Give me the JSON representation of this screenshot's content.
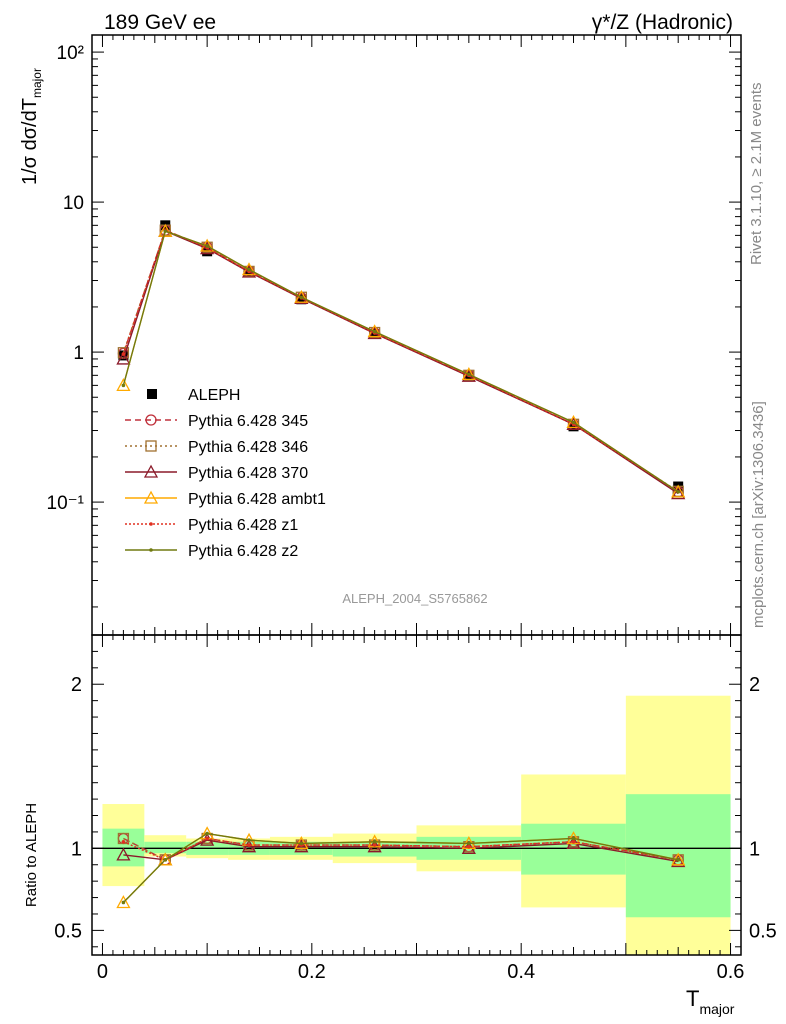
{
  "header": {
    "left_title": "189 GeV ee",
    "right_title": "γ*/Z (Hadronic)"
  },
  "side_labels": {
    "rivet": "Rivet 3.1.10, ≥ 2.1M events",
    "mcplots": "mcplots.cern.ch [arXiv:1306.3436]"
  },
  "watermark": "ALEPH_2004_S5765862",
  "colors": {
    "data": "#000000",
    "band_inner": "#99ff99",
    "band_outer": "#ffff99",
    "p345": "#c0303b",
    "p346": "#a07030",
    "p370": "#8b1a2a",
    "ambt1": "#ffaa00",
    "z1": "#e03020",
    "z2": "#707a10"
  },
  "chart_data": [
    {
      "type": "line",
      "title": "",
      "ylabel": "1/σ  dσ/dT_major",
      "xlabel": "",
      "yscale": "log",
      "ylim": [
        0.013,
        130
      ],
      "xlim": [
        -0.01,
        0.61
      ],
      "y_tick_labels": [
        "10⁻¹",
        "1",
        "10",
        "10²"
      ],
      "legend_position": "middle-left",
      "x": [
        0.02,
        0.06,
        0.1,
        0.14,
        0.19,
        0.26,
        0.35,
        0.45,
        0.55
      ],
      "data_series": {
        "name": "ALEPH",
        "values": [
          0.95,
          7.0,
          4.7,
          3.4,
          2.25,
          1.32,
          0.69,
          0.32,
          0.127
        ]
      },
      "series": [
        {
          "name": "Pythia 6.428 345",
          "values": [
            0.98,
            6.5,
            5.0,
            3.45,
            2.3,
            1.34,
            0.7,
            0.33,
            0.117
          ]
        },
        {
          "name": "Pythia 6.428 346",
          "values": [
            0.99,
            6.5,
            5.0,
            3.45,
            2.32,
            1.35,
            0.7,
            0.33,
            0.118
          ]
        },
        {
          "name": "Pythia 6.428 370",
          "values": [
            0.9,
            6.4,
            4.9,
            3.42,
            2.28,
            1.33,
            0.69,
            0.33,
            0.114
          ]
        },
        {
          "name": "Pythia 6.428 ambt1",
          "values": [
            0.6,
            6.4,
            5.1,
            3.55,
            2.32,
            1.37,
            0.71,
            0.34,
            0.117
          ]
        },
        {
          "name": "Pythia 6.428 z1",
          "values": [
            0.97,
            6.5,
            4.95,
            3.45,
            2.3,
            1.34,
            0.7,
            0.33,
            0.117
          ]
        },
        {
          "name": "Pythia 6.428 z2",
          "values": [
            0.6,
            6.4,
            5.1,
            3.55,
            2.32,
            1.37,
            0.71,
            0.34,
            0.117
          ]
        }
      ]
    },
    {
      "type": "line",
      "title": "",
      "ylabel": "Ratio to ALEPH",
      "xlabel": "T_major",
      "ylim": [
        0.35,
        2.3
      ],
      "xlim": [
        -0.01,
        0.61
      ],
      "x_tick_labels": [
        "0",
        "0.2",
        "0.4",
        "0.6"
      ],
      "y_tick_labels": [
        "0.5",
        "1",
        "2"
      ],
      "bins": [
        [
          0.0,
          0.04
        ],
        [
          0.04,
          0.08
        ],
        [
          0.08,
          0.12
        ],
        [
          0.12,
          0.16
        ],
        [
          0.16,
          0.22
        ],
        [
          0.22,
          0.3
        ],
        [
          0.3,
          0.4
        ],
        [
          0.4,
          0.5
        ],
        [
          0.5,
          0.6
        ]
      ],
      "band_inner": [
        [
          0.89,
          1.12
        ],
        [
          0.97,
          1.04
        ],
        [
          0.96,
          1.04
        ],
        [
          0.96,
          1.04
        ],
        [
          0.96,
          1.04
        ],
        [
          0.95,
          1.04
        ],
        [
          0.93,
          1.07
        ],
        [
          0.84,
          1.15
        ],
        [
          0.58,
          1.33
        ]
      ],
      "band_outer": [
        [
          0.77,
          1.27
        ],
        [
          0.95,
          1.08
        ],
        [
          0.94,
          1.06
        ],
        [
          0.93,
          1.06
        ],
        [
          0.93,
          1.07
        ],
        [
          0.91,
          1.09
        ],
        [
          0.86,
          1.14
        ],
        [
          0.64,
          1.45
        ],
        [
          0.35,
          1.93
        ]
      ],
      "x": [
        0.02,
        0.06,
        0.1,
        0.14,
        0.19,
        0.26,
        0.35,
        0.45,
        0.55
      ],
      "series": [
        {
          "name": "Pythia 6.428 345",
          "values": [
            1.06,
            0.93,
            1.06,
            1.02,
            1.02,
            1.02,
            1.01,
            1.04,
            0.93
          ]
        },
        {
          "name": "Pythia 6.428 346",
          "values": [
            1.06,
            0.93,
            1.06,
            1.02,
            1.02,
            1.02,
            1.01,
            1.04,
            0.93
          ]
        },
        {
          "name": "Pythia 6.428 370",
          "values": [
            0.96,
            0.93,
            1.05,
            1.01,
            1.01,
            1.01,
            1.0,
            1.03,
            0.92
          ]
        },
        {
          "name": "Pythia 6.428 ambt1",
          "values": [
            0.67,
            0.93,
            1.09,
            1.05,
            1.03,
            1.04,
            1.03,
            1.06,
            0.93
          ]
        },
        {
          "name": "Pythia 6.428 z1",
          "values": [
            1.04,
            0.93,
            1.06,
            1.02,
            1.02,
            1.02,
            1.01,
            1.04,
            0.93
          ]
        },
        {
          "name": "Pythia 6.428 z2",
          "values": [
            0.67,
            0.93,
            1.09,
            1.05,
            1.03,
            1.04,
            1.03,
            1.06,
            0.93
          ]
        }
      ]
    }
  ]
}
